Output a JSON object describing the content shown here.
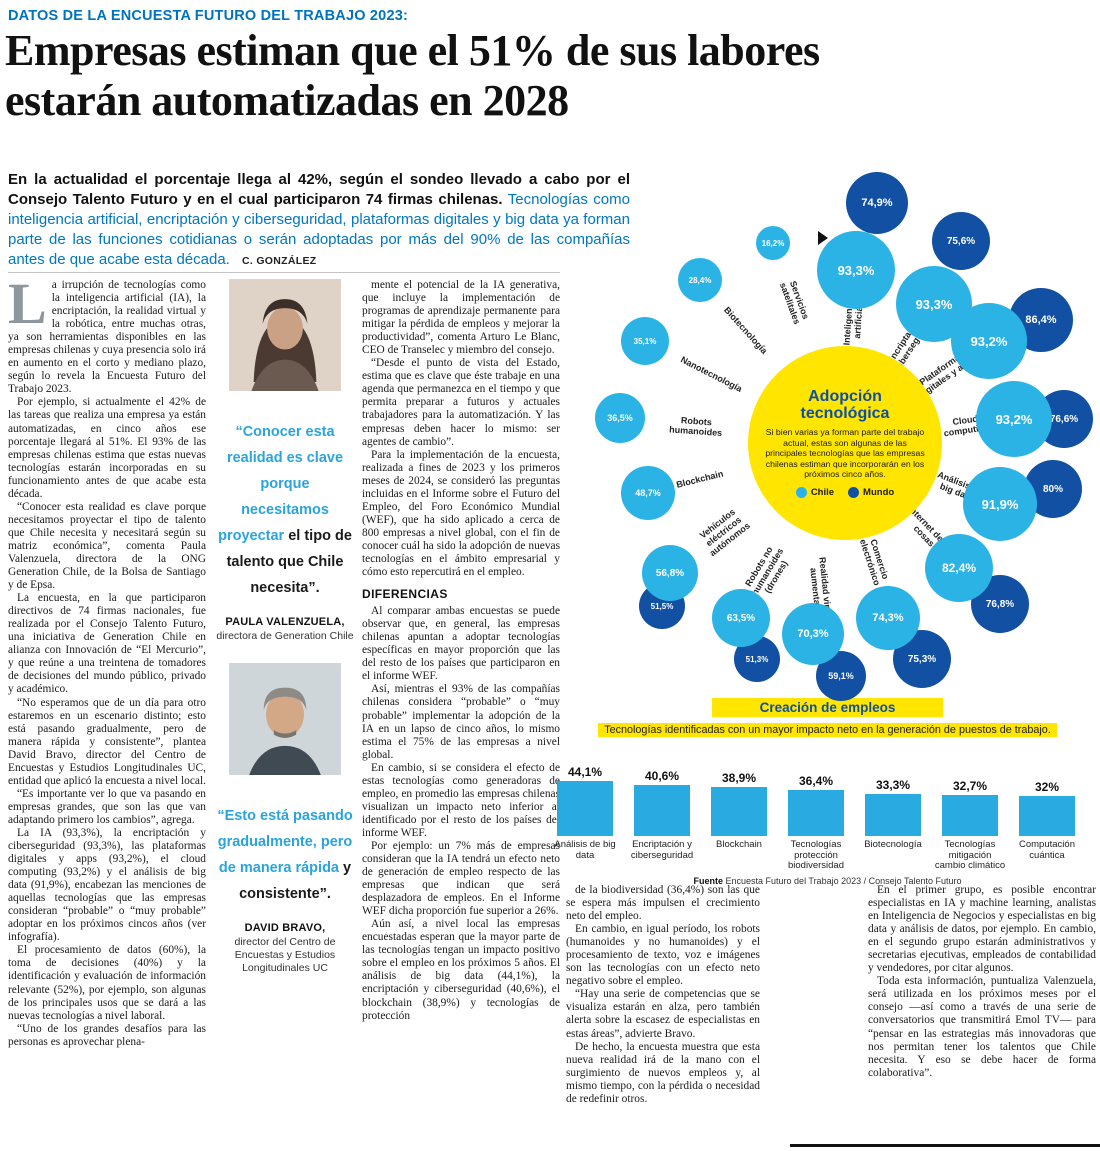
{
  "page": {
    "kicker": "DATOS DE LA ENCUESTA FUTURO DEL TRABAJO 2023:",
    "headline": "Empresas estiman que el 51% de sus labores estarán automatizadas en 2028"
  },
  "lede": {
    "bold": "En la actualidad el porcentaje llega al 42%, según el sondeo llevado a cabo por el Consejo Talento Futuro y en el cual participaron 74 firmas chilenas.",
    "blue": "Tecnologías como inteligencia artificial, encriptación y ciberseguridad, plataformas digitales y big data ya forman parte de las funciones cotidianas o serán adoptadas por más del 90% de las compañías antes de que acabe esta década.",
    "byline": "C. GONZÁLEZ"
  },
  "article": {
    "dropcap": "L",
    "col1_first": "a irrupción de tecnologías como la inteligencia artificial (IA), la encriptación, la realidad virtual y la robótica, entre muchas otras, ya son herramientas disponibles en las empresas chilenas y cuya presencia solo irá en aumento en el corto y mediano plazo, según lo revela la Encuesta Futuro del Trabajo 2023.",
    "col1_rest": [
      "Por ejemplo, si actualmente el 42% de las tareas que realiza una empresa ya están automatizadas, en cinco años ese porcentaje llegará al 51%. El 93% de las empresas chilenas estima que estas nuevas tecnologías estarán incorporadas en su funcionamiento antes de que acabe esta década.",
      "“Conocer esta realidad es clave porque necesitamos proyectar el tipo de talento que Chile necesita y necesitará según su matriz económica”, comenta Paula Valenzuela, directora de la ONG Generation Chile, de la Bolsa de Santiago y de Epsa.",
      "La encuesta, en la que participaron directivos de 74 firmas nacionales, fue realizada por el Consejo Talento Futuro, una iniciativa de Generation Chile en alianza con Innovación de “El Mercurio”, y que reúne a una treintena de tomadores de decisiones del mundo público, privado y académico.",
      "“No esperamos que de un día para otro estaremos en un escenario distinto; esto está pasando gradualmente, pero de manera rápida y consistente”, plantea David Bravo, director del Centro de Encuestas y Estudios Longitudinales UC, entidad que aplicó la encuesta a nivel local.",
      "“Es importante ver lo que va pasando en empresas grandes, que son las que van adaptando primero los cambios”, agrega.",
      "La IA (93,3%), la encriptación y ciberseguridad (93,3%), las plataformas digitales y apps (93,2%), el cloud computing (93,2%) y el análisis de big data (91,9%), encabezan las menciones de aquellas tecnologías que las empresas consideran “probable” o “muy probable” adoptar en los próximos cincos años (ver infografía).",
      "El procesamiento de datos (60%), la toma de decisiones (40%) y la identificación y evaluación de información relevante (52%), por ejemplo, son algunas de los principales usos que se dará a las nuevas tecnologías a nivel laboral.",
      "“Uno de los grandes desafíos para las personas es aprovechar plena-"
    ],
    "col3_before": [
      "mente el potencial de la IA generativa, que incluye la implementación de programas de aprendizaje permanente para mitigar la pérdida de empleos y mejorar la productividad”, comenta Arturo Le Blanc, CEO de Transelec y miembro del consejo.",
      "“Desde el punto de vista del Estado, estima que es clave que éste trabaje en una agenda que permanezca en el tiempo y que permita preparar a futuros y actuales trabajadores para la automatización. Y las empresas deben hacer lo mismo: ser agentes de cambio”.",
      "Para la implementación de la encuesta, realizada a fines de 2023 y los primeros meses de 2024, se consideró las preguntas incluidas en el Informe sobre el Futuro del Empleo, del Foro Económico Mundial (WEF), que ha sido aplicado a cerca de 800 empresas a nivel global, con el fin de conocer cuál ha sido la adopción de nuevas tecnologías en el ámbito empresarial y cómo esto repercutirá en el empleo."
    ],
    "subhead": "DIFERENCIAS",
    "col3_after": [
      "Al comparar ambas encuestas se puede observar que, en general, las empresas chilenas apuntan a adoptar tecnologías específicas en mayor proporción que las del resto de los países que participaron en el informe WEF.",
      "Así, mientras el 93% de las compañías chilenas considera “probable” o “muy probable” implementar la adopción de la IA en un lapso de cinco años, lo mismo estima el 75% de las empresas a nivel global.",
      "En cambio, si se considera el efecto de estas tecnologías como generadoras de empleo, en promedio las empresas chilenas visualizan un impacto neto inferior al identificado por el resto de los países del informe WEF.",
      "Por ejemplo: un 7% más de empresas consideran que la IA tendrá un efecto neto de generación de empleo respecto de las empresas que indican que será desplazadora de empleos. En el Informe WEF dicha proporción fue superior a 26%.",
      "Aún así, a nivel local las empresas encuestadas esperan que la mayor parte de las tecnologías tengan un impacto positivo sobre el empleo en los próximos 5 años. El análisis de big data (44,1%), la encriptación y ciberseguridad (40,6%), el blockchain (38,9%) y tecnologías de protección"
    ],
    "col4": [
      "de la biodiversidad (36,4%) son las que se espera más impulsen el crecimiento neto del empleo.",
      "En cambio, en igual período, los robots (humanoides y no humanoides) y el procesamiento de texto, voz e imágenes son las tecnologías con un efecto neto negativo sobre el empleo.",
      "“Hay una serie de competencias que se visualiza estarán en alza, pero también alerta sobre la escasez de especialistas en estas áreas”, advierte Bravo.",
      "De hecho, la encuesta muestra que esta nueva realidad irá de la mano con el surgimiento de nuevos empleos y, al mismo tiempo, con la pérdida o necesidad de redefinir otros."
    ],
    "col5": [
      "En el primer grupo, es posible encontrar especialistas en IA y machine learning, analistas en Inteligencia de Negocios y especialistas en big data y análisis de datos, por ejemplo. En cambio, en el segundo grupo estarán administrativos y secretarias ejecutivas, empleados de contabilidad y vendedores, por citar algunos.",
      "Toda esta información, puntualiza Valenzuela, será utilizada en los próximos meses por el consejo —así como a través de una serie de conversatorios que transmitirá Emol TV— para “pensar en las estrategias más innovadoras que nos permitan tener los talentos que Chile necesita. Y eso se debe hacer de forma colaborativa”."
    ]
  },
  "quotes": [
    {
      "blue": "“Conocer esta realidad es clave porque necesitamos proyectar ",
      "black": "el tipo de talento que Chile necesita”.",
      "name": "PAULA VALENZUELA,",
      "role": "directora de Generation Chile"
    },
    {
      "blue": "“Esto está pasando gradualmente, pero de manera rápida ",
      "black": "y consistente”.",
      "name": "DAVID BRAVO,",
      "role": "director del Centro de Encuestas y Estudios Longitudinales UC"
    }
  ],
  "chart_data": [
    {
      "type": "scatter",
      "variant": "bubble-ring",
      "title": "Adopción tecnológica",
      "subtitle": "Si bien varias ya forman parte del trabajo actual, estas son algunas de las principales tecnologías que las empresas chilenas estiman que incorporarán en los próximos cinco años.",
      "unit": "%",
      "legend": [
        {
          "name": "Chile",
          "color": "#2bb3e6"
        },
        {
          "name": "Mundo",
          "color": "#1150a2"
        }
      ],
      "items": [
        {
          "label": "Inteligencia artificial",
          "chile": 93.3,
          "mundo": 74.9
        },
        {
          "label": "Encriptación y ciberseguridad",
          "chile": 93.3,
          "mundo": 75.6
        },
        {
          "label": "Plataformas digitales y apps",
          "chile": 93.2,
          "mundo": 86.4
        },
        {
          "label": "Cloud computing",
          "chile": 93.2,
          "mundo": 76.6
        },
        {
          "label": "Análisis de big data",
          "chile": 91.9,
          "mundo": 80
        },
        {
          "label": "Internet de las cosas",
          "chile": 82.4,
          "mundo": 76.8
        },
        {
          "label": "Comercio electrónico",
          "chile": 74.3,
          "mundo": 75.3
        },
        {
          "label": "Realidad virtual aumentada",
          "chile": 70.3,
          "mundo": 59.1
        },
        {
          "label": "Robots no humanoides (drones)",
          "chile": 63.5,
          "mundo": 51.3
        },
        {
          "label": "Vehículos eléctricos autónomos",
          "chile": 56.8,
          "mundo": 51.5
        },
        {
          "label": "Blockchain",
          "chile": 48.7,
          "mundo": null
        },
        {
          "label": "Robots humanoides",
          "chile": 36.5,
          "mundo": null
        },
        {
          "label": "Nanotecnología",
          "chile": 35.1,
          "mundo": null
        },
        {
          "label": "Biotecnología",
          "chile": 28.4,
          "mundo": null
        },
        {
          "label": "Servicios satelitales",
          "chile": 16.2,
          "mundo": null
        }
      ]
    },
    {
      "type": "bar",
      "title": "Creación de empleos",
      "subtitle": "Tecnologías identificadas con un mayor impacto neto en la generación de puestos de trabajo.",
      "categories": [
        "Análisis de big data",
        "Encriptación y ciberseguridad",
        "Blockchain",
        "Tecnologías protección biodiversidad",
        "Biotecnología",
        "Tecnologías mitigación cambio climático",
        "Computación cuántica"
      ],
      "values": [
        44.1,
        40.6,
        38.9,
        36.4,
        33.3,
        32.7,
        32
      ],
      "unit": "%",
      "bar_color": "#29abe2",
      "ylim": [
        0,
        50
      ],
      "source_label": "Fuente",
      "source_text": "Encuesta Futuro del Trabajo 2023 / Consejo Talento Futuro"
    }
  ],
  "colors": {
    "brand_blue": "#0073bd",
    "light_blue": "#29abe2",
    "dark_blue": "#1150a2",
    "yellow": "#ffe500"
  }
}
